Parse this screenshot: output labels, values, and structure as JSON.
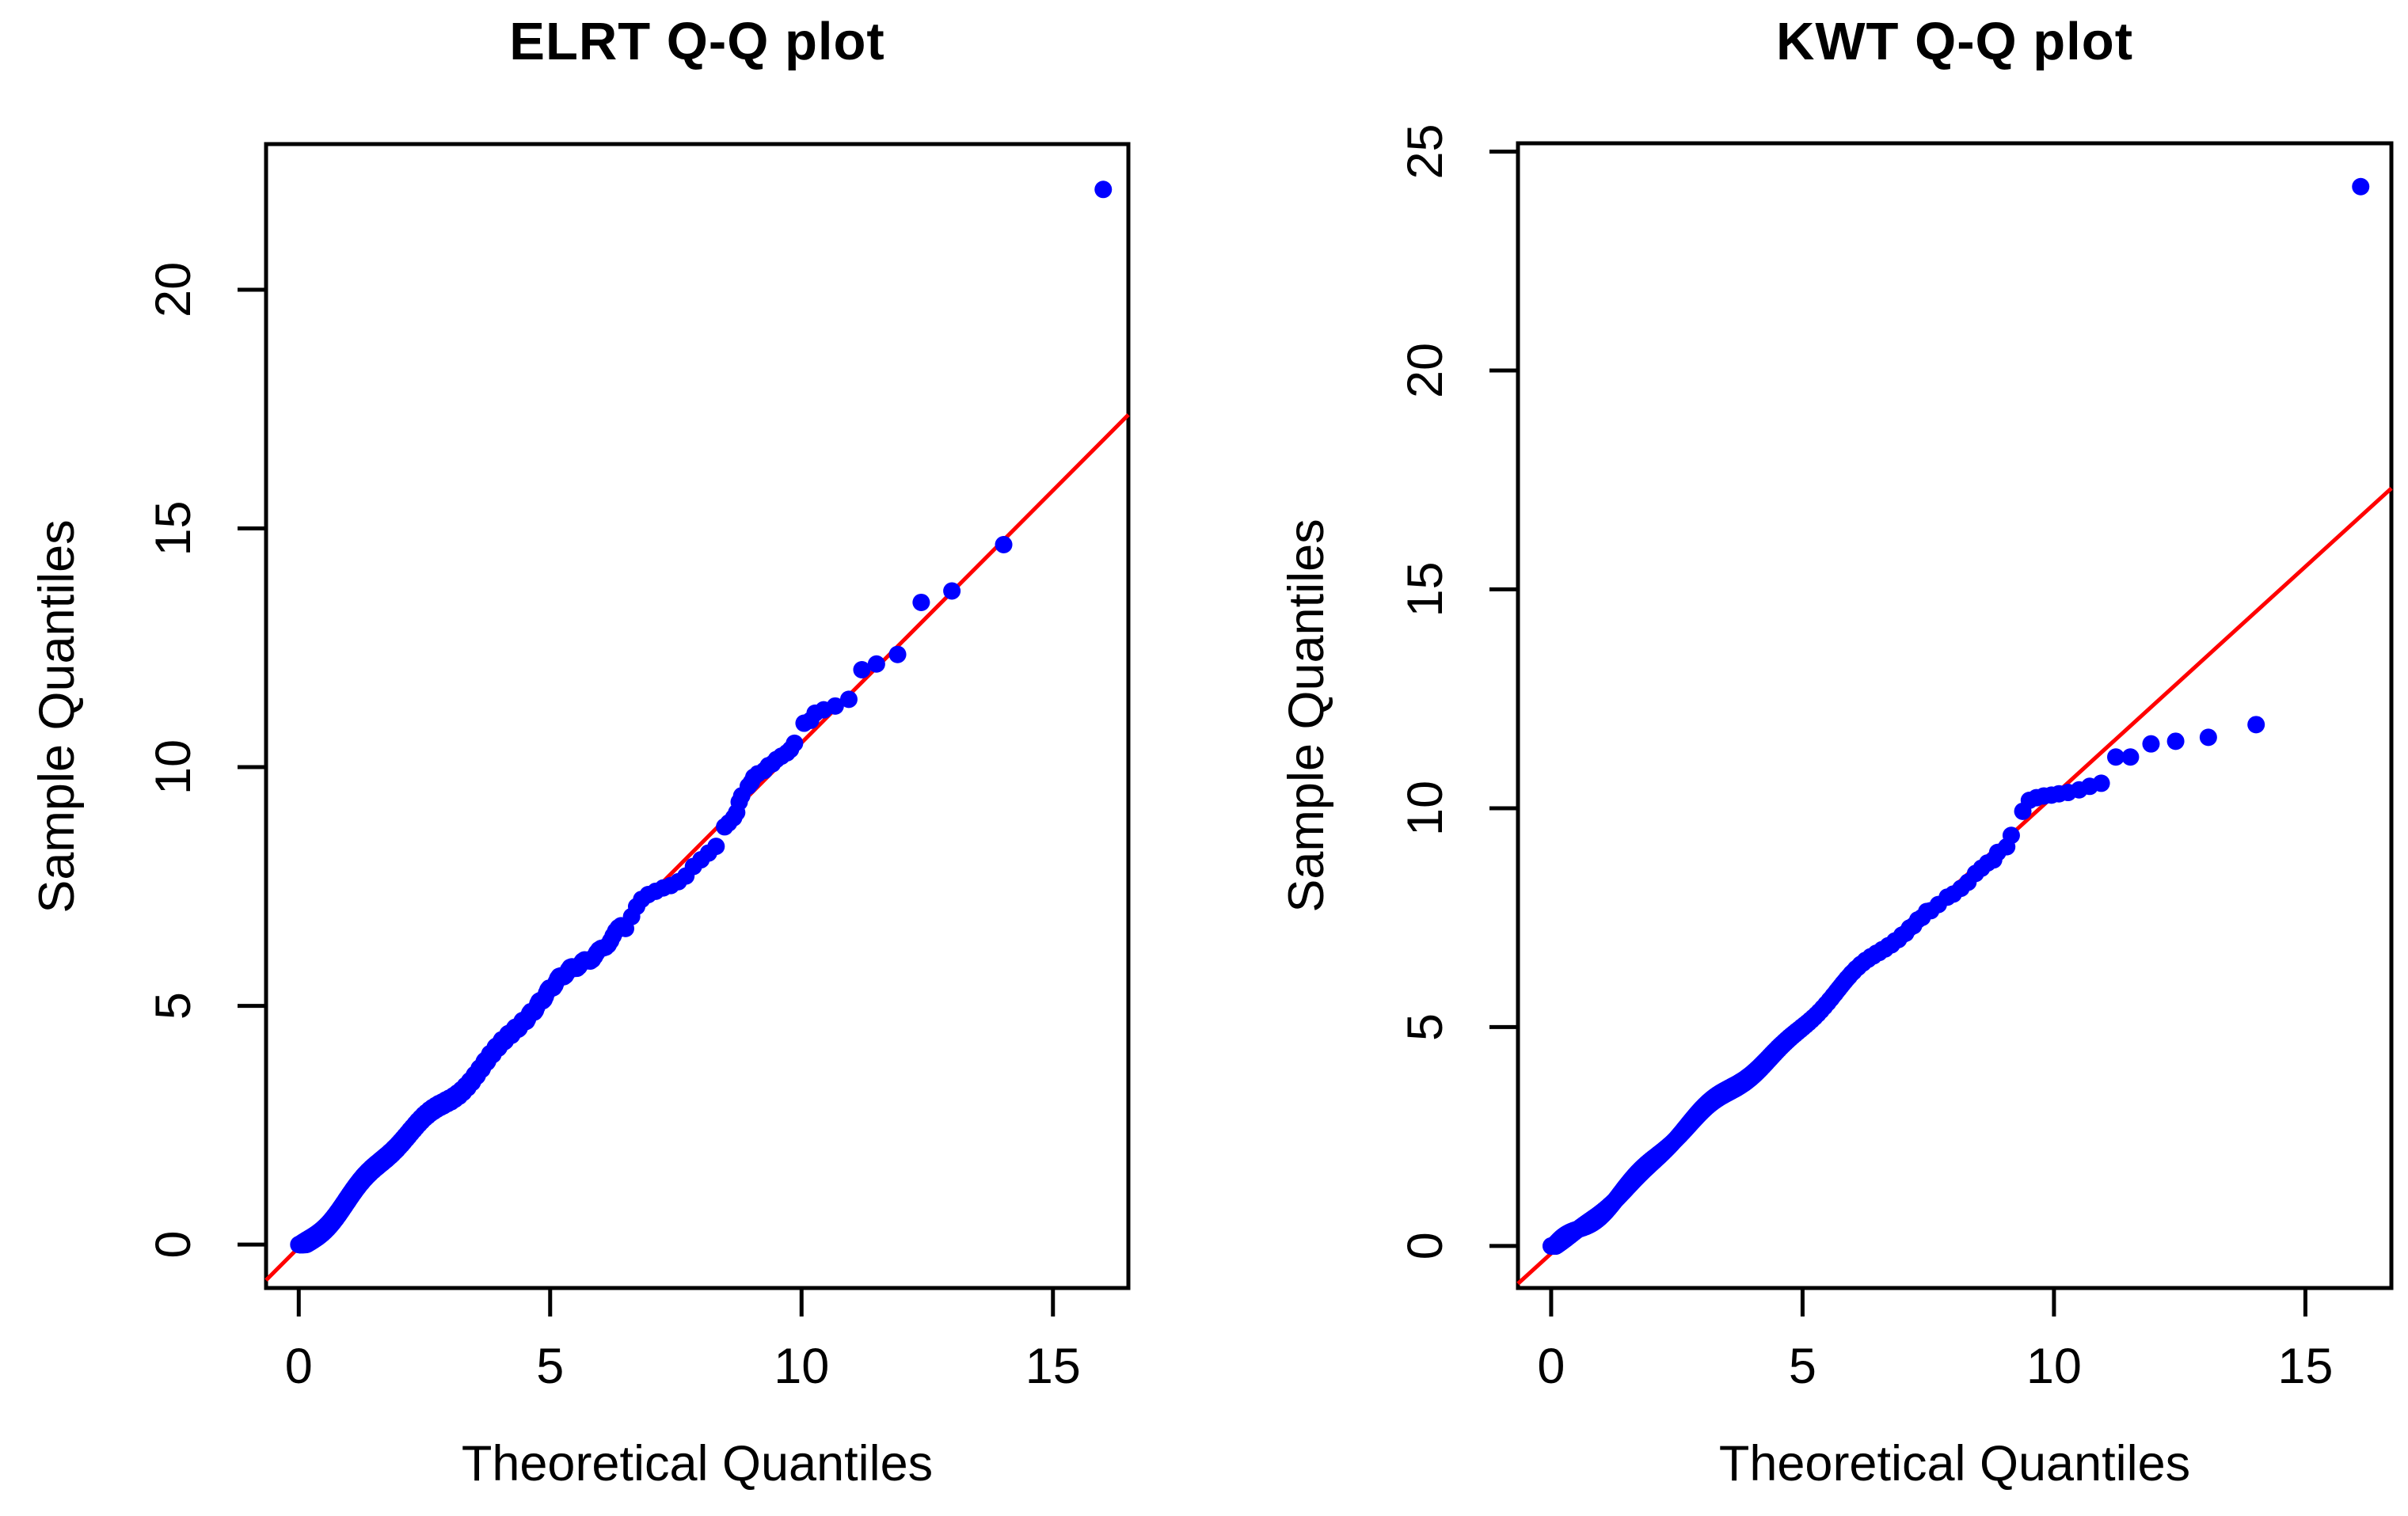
{
  "colors": {
    "points": "#0000ff",
    "ref_line": "#ff0000",
    "axis": "#000000",
    "background": "#ffffff"
  },
  "chart_data": [
    {
      "type": "scatter",
      "title": "ELRT Q-Q plot",
      "xlabel": "Theoretical Quantiles",
      "ylabel": "Sample Quantiles",
      "x_ticks": [
        0,
        5,
        10,
        15
      ],
      "y_ticks": [
        0,
        5,
        10,
        15,
        20
      ],
      "xlim": [
        -0.65,
        16.5
      ],
      "ylim": [
        -0.91,
        23.05
      ],
      "grid": false,
      "legend": false,
      "points_color": "#0000ff",
      "ref_line": {
        "slope": 1.057,
        "intercept": -0.06,
        "color": "#ff0000"
      },
      "dense_band": {
        "description": "several hundred overlapping blue points forming a solid band along the reference line from (0,0) to about (6.4,6.6)",
        "n": 900,
        "exp_scale": 2,
        "x_max": 6.45,
        "wiggle": [
          {
            "a": 0.1,
            "b": 2.1,
            "c": 3.8
          },
          {
            "a": 0.07,
            "b": 4.7,
            "c": 2.0
          }
        ],
        "jitter": {
          "a": 0.05,
          "b": 7.13
        }
      },
      "tail_points": [
        [
          6.5,
          6.62
        ],
        [
          6.62,
          6.87
        ],
        [
          6.72,
          7.08
        ],
        [
          6.82,
          7.23
        ],
        [
          6.95,
          7.33
        ],
        [
          7.1,
          7.4
        ],
        [
          7.25,
          7.47
        ],
        [
          7.4,
          7.52
        ],
        [
          7.55,
          7.6
        ],
        [
          7.7,
          7.72
        ],
        [
          7.85,
          7.92
        ],
        [
          8.0,
          8.06
        ],
        [
          8.15,
          8.2
        ],
        [
          8.3,
          8.34
        ],
        [
          8.47,
          8.75
        ],
        [
          8.55,
          8.83
        ],
        [
          8.65,
          8.94
        ],
        [
          8.71,
          9.05
        ],
        [
          8.76,
          9.27
        ],
        [
          8.81,
          9.4
        ],
        [
          8.94,
          9.6
        ],
        [
          9.0,
          9.68
        ],
        [
          9.05,
          9.79
        ],
        [
          9.13,
          9.86
        ],
        [
          9.26,
          9.93
        ],
        [
          9.34,
          10.03
        ],
        [
          9.42,
          10.07
        ],
        [
          9.5,
          10.16
        ],
        [
          9.6,
          10.23
        ],
        [
          9.71,
          10.3
        ],
        [
          9.78,
          10.37
        ],
        [
          9.86,
          10.5
        ],
        [
          10.05,
          10.92
        ],
        [
          10.18,
          10.98
        ],
        [
          10.27,
          11.13
        ],
        [
          10.44,
          11.2
        ],
        [
          10.67,
          11.28
        ],
        [
          10.94,
          11.42
        ],
        [
          11.2,
          12.04
        ],
        [
          11.49,
          12.16
        ],
        [
          11.91,
          12.36
        ],
        [
          12.38,
          13.45
        ],
        [
          12.99,
          13.69
        ],
        [
          14.02,
          14.66
        ]
      ],
      "outlier": [
        16.0,
        22.1
      ]
    },
    {
      "type": "scatter",
      "title": "KWT Q-Q plot",
      "xlabel": "Theoretical Quantiles",
      "ylabel": "Sample Quantiles",
      "x_ticks": [
        0,
        5,
        10,
        15
      ],
      "y_ticks": [
        0,
        5,
        10,
        15,
        20,
        25
      ],
      "xlim": [
        -0.66,
        16.71
      ],
      "ylim": [
        -0.96,
        25.19
      ],
      "grid": false,
      "legend": false,
      "points_color": "#0000ff",
      "ref_line": {
        "slope": 1.046,
        "intercept": -0.17,
        "color": "#ff0000"
      },
      "dense_band": {
        "description": "several hundred overlapping blue points forming a solid band along the reference line from (0,0) to about (7.5,7.7)",
        "n": 900,
        "exp_scale": 2,
        "x_max": 7.5,
        "wiggle": [
          {
            "a": 0.1,
            "b": 1.9,
            "c": 2.4
          },
          {
            "a": 0.06,
            "b": 4.3,
            "c": 0.5
          }
        ],
        "jitter": {
          "a": 0.05,
          "b": 9.41
        }
      },
      "tail_points": [
        [
          7.55,
          7.66
        ],
        [
          7.7,
          7.8
        ],
        [
          7.88,
          7.97
        ],
        [
          8.0,
          8.04
        ],
        [
          8.15,
          8.17
        ],
        [
          8.29,
          8.31
        ],
        [
          8.44,
          8.51
        ],
        [
          8.56,
          8.63
        ],
        [
          8.68,
          8.75
        ],
        [
          8.8,
          8.82
        ],
        [
          8.88,
          8.99
        ],
        [
          9.06,
          9.12
        ],
        [
          9.15,
          9.38
        ],
        [
          9.38,
          9.93
        ],
        [
          9.51,
          10.18
        ],
        [
          9.65,
          10.24
        ],
        [
          9.8,
          10.28
        ],
        [
          9.95,
          10.3
        ],
        [
          10.1,
          10.33
        ],
        [
          10.28,
          10.36
        ],
        [
          10.5,
          10.42
        ],
        [
          10.71,
          10.5
        ],
        [
          10.94,
          10.57
        ],
        [
          11.23,
          11.17
        ],
        [
          11.52,
          11.17
        ],
        [
          11.93,
          11.47
        ],
        [
          12.42,
          11.53
        ],
        [
          13.07,
          11.62
        ],
        [
          14.02,
          11.91
        ]
      ],
      "outlier": [
        16.1,
        24.2
      ]
    }
  ]
}
